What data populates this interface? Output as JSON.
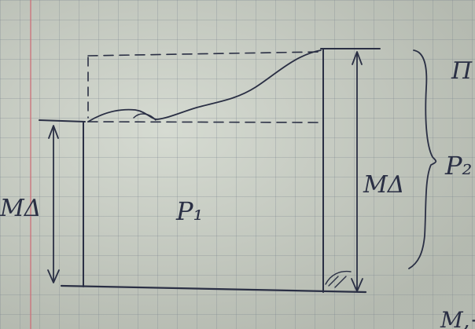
{
  "labels": {
    "left_dimension": "MΔ",
    "center_area": "P₁",
    "right_dimension": "MΔ",
    "brace_label": "P₂",
    "top_right_partial": "П",
    "bottom_right_partial": "M,+"
  },
  "colors": {
    "ink": "#2a2f44",
    "paper": "#cdd3c8",
    "grid": "#7a8290",
    "margin_line": "#cd6e78"
  }
}
